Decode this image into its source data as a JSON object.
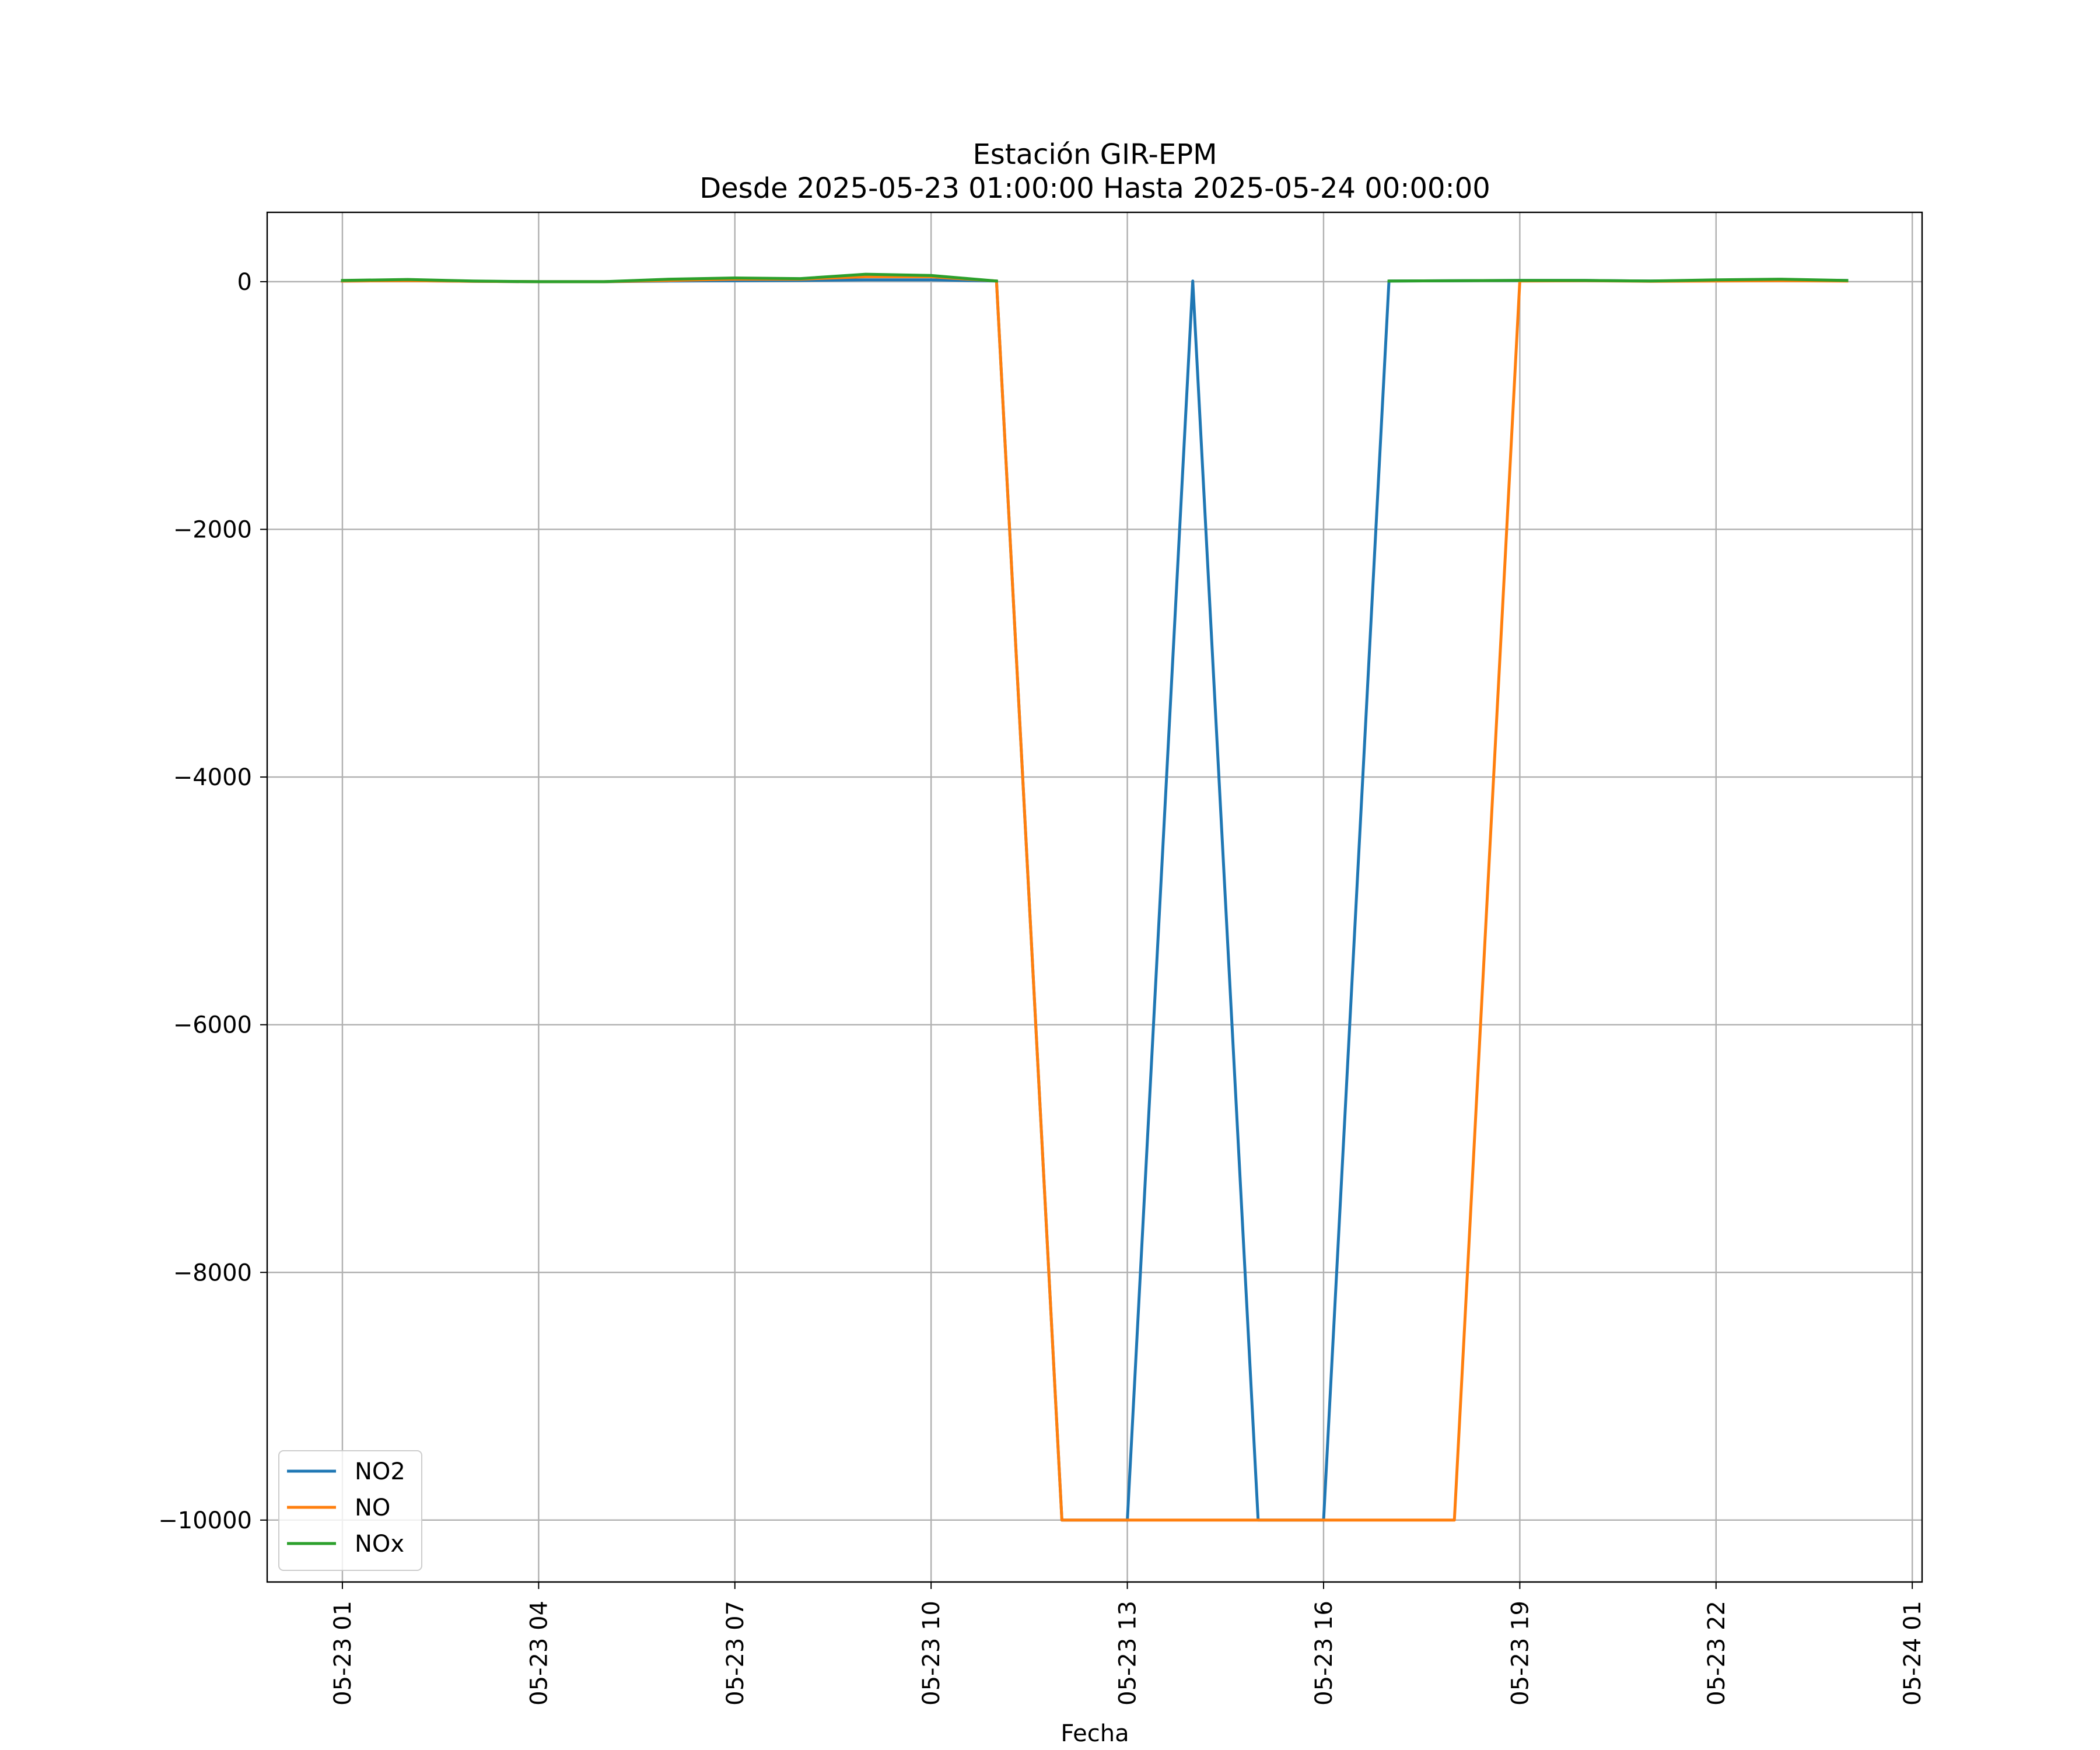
{
  "chart_data": {
    "type": "line",
    "title": "Estación GIR-EPM",
    "subtitle": "Desde 2025-05-23 01:00:00 Hasta 2025-05-24 00:00:00",
    "xlabel": "Fecha",
    "ylabel": "",
    "x": [
      "2025-05-23 01:00",
      "2025-05-23 02:00",
      "2025-05-23 03:00",
      "2025-05-23 04:00",
      "2025-05-23 05:00",
      "2025-05-23 06:00",
      "2025-05-23 07:00",
      "2025-05-23 08:00",
      "2025-05-23 09:00",
      "2025-05-23 10:00",
      "2025-05-23 11:00",
      "2025-05-23 12:00",
      "2025-05-23 13:00",
      "2025-05-23 14:00",
      "2025-05-23 15:00",
      "2025-05-23 16:00",
      "2025-05-23 17:00",
      "2025-05-23 18:00",
      "2025-05-23 19:00",
      "2025-05-23 20:00",
      "2025-05-23 21:00",
      "2025-05-23 22:00",
      "2025-05-23 23:00",
      "2025-05-24 00:00"
    ],
    "series": [
      {
        "name": "NO2",
        "color": "#1f77b4",
        "values": [
          5,
          8,
          3,
          0,
          0,
          5,
          8,
          10,
          15,
          15,
          5,
          -10000,
          -10000,
          5,
          -10000,
          -10000,
          5,
          8,
          10,
          10,
          5,
          10,
          15,
          10
        ]
      },
      {
        "name": "NO",
        "color": "#ff7f0e",
        "values": [
          5,
          8,
          3,
          0,
          0,
          10,
          20,
          20,
          40,
          40,
          5,
          -10000,
          -10000,
          -10000,
          -10000,
          -10000,
          -10000,
          -10000,
          5,
          8,
          3,
          5,
          8,
          5
        ]
      },
      {
        "name": "NOx",
        "color": "#2ca02c",
        "values": [
          10,
          18,
          5,
          0,
          0,
          20,
          30,
          25,
          60,
          50,
          5,
          null,
          null,
          null,
          null,
          null,
          5,
          8,
          10,
          10,
          5,
          15,
          20,
          10
        ]
      }
    ],
    "xticks": [
      "05-23 01",
      "05-23 04",
      "05-23 07",
      "05-23 10",
      "05-23 13",
      "05-23 16",
      "05-23 19",
      "05-23 22",
      "05-24 01"
    ],
    "xtick_hours": [
      0,
      3,
      6,
      9,
      12,
      15,
      18,
      21,
      24
    ],
    "yticks": [
      0,
      -2000,
      -4000,
      -6000,
      -8000,
      -10000
    ],
    "ytick_labels": [
      "0",
      "−2000",
      "−4000",
      "−6000",
      "−8000",
      "−10000"
    ],
    "ylim": [
      -10500,
      560
    ],
    "xlim_hours": [
      -1.15,
      24.15
    ],
    "grid": true,
    "legend_placement": "lower-left"
  }
}
